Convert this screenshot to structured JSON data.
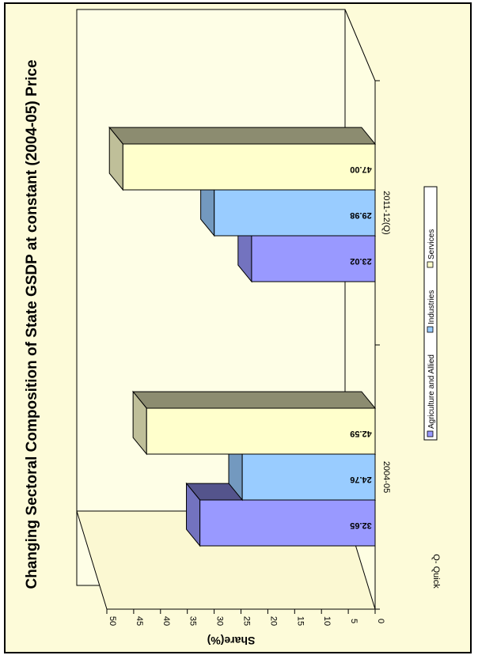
{
  "chart_data": {
    "type": "bar",
    "title": "Changing Sectoral Composition of State GSDP at constant (2004-05) Price",
    "ylabel": "Share(%)",
    "xlabel": "",
    "ylim": [
      0,
      50
    ],
    "yticks": [
      0,
      5,
      10,
      15,
      20,
      25,
      30,
      35,
      40,
      45,
      50
    ],
    "categories": [
      "2004-05",
      "2011-12(Q)"
    ],
    "series": [
      {
        "name": "Agriculture and Allied",
        "values": [
          32.65,
          23.02
        ],
        "color": "#9999ff"
      },
      {
        "name": "Industries",
        "values": [
          24.76,
          29.98
        ],
        "color": "#99ccff"
      },
      {
        "name": "Services",
        "values": [
          42.59,
          47.0
        ],
        "color": "#ffffcc"
      }
    ],
    "data_labels": [
      [
        "32.65",
        "23.02"
      ],
      [
        "24.76",
        "29.98"
      ],
      [
        "42.59",
        "47.00"
      ]
    ],
    "legend_position": "bottom",
    "orientation": "rotated 90 degrees clockwise, 3D columns"
  },
  "note": "Q- Quick",
  "colors": {
    "background": "#fdfbd9",
    "wall": "#fefee6",
    "depth_top": "#7a7755",
    "border": "#000000"
  }
}
